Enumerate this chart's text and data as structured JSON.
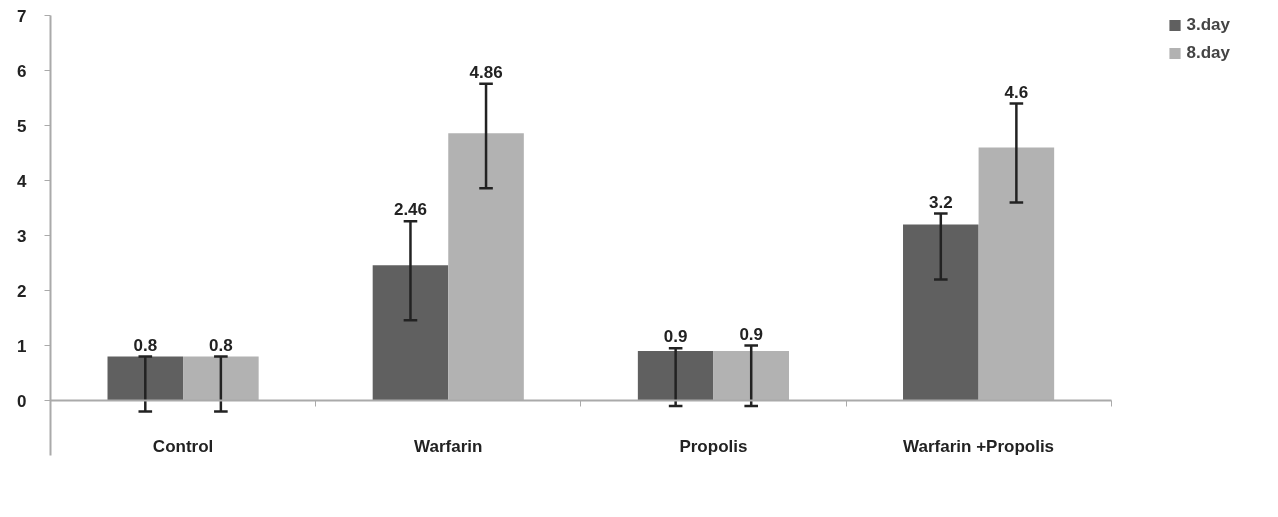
{
  "chart_data": {
    "type": "bar",
    "categories": [
      "Control",
      "Warfarin",
      "Propolis",
      "Warfarin +Propolis"
    ],
    "series": [
      {
        "name": "3.day",
        "color": "#606060",
        "values": [
          0.8,
          2.46,
          0.9,
          3.2
        ],
        "errors": [
          [
            -0.2,
            0.8
          ],
          [
            1.46,
            3.26
          ],
          [
            -0.1,
            0.95
          ],
          [
            2.2,
            3.4
          ]
        ]
      },
      {
        "name": "8.day",
        "color": "#b2b2b2",
        "values": [
          0.8,
          4.86,
          0.9,
          4.6
        ],
        "errors": [
          [
            -0.2,
            0.8
          ],
          [
            3.86,
            5.76
          ],
          [
            -0.1,
            1.0
          ],
          [
            3.6,
            5.4
          ]
        ]
      }
    ],
    "ylim": [
      -1,
      7
    ],
    "yticks": [
      0,
      1,
      2,
      3,
      4,
      5,
      6,
      7
    ],
    "grid": false,
    "legend": "top right",
    "data_labels": true
  }
}
